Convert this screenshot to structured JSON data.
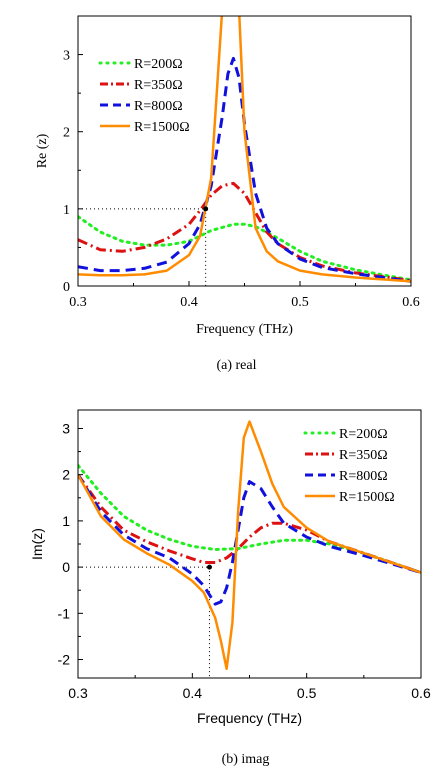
{
  "chart_data": [
    {
      "type": "line",
      "xlabel": "Frequency (THz)",
      "ylabel": "Re (z)",
      "caption": "(a) real",
      "xlim": [
        0.3,
        0.6
      ],
      "ylim": [
        0,
        3.5
      ],
      "xticks": [
        "0.3",
        "0.4",
        "0.5",
        "0.6"
      ],
      "yticks": [
        "0",
        "1",
        "2",
        "3"
      ],
      "legend_position": "top-left",
      "reference_lines": {
        "x": 0.415,
        "y": 1.0,
        "marker": [
          0.415,
          1.0
        ]
      },
      "series": [
        {
          "name": "R=200Ω",
          "color": "#22ee22",
          "style": "dotted",
          "x": [
            0.3,
            0.32,
            0.34,
            0.36,
            0.38,
            0.4,
            0.41,
            0.42,
            0.43,
            0.44,
            0.45,
            0.46,
            0.48,
            0.5,
            0.52,
            0.55,
            0.58,
            0.6
          ],
          "y": [
            0.9,
            0.7,
            0.58,
            0.53,
            0.53,
            0.58,
            0.65,
            0.72,
            0.76,
            0.8,
            0.8,
            0.77,
            0.62,
            0.45,
            0.32,
            0.21,
            0.13,
            0.08
          ]
        },
        {
          "name": "R=350Ω",
          "color": "#dd1111",
          "style": "dashdot",
          "x": [
            0.3,
            0.32,
            0.34,
            0.36,
            0.38,
            0.4,
            0.41,
            0.42,
            0.43,
            0.44,
            0.45,
            0.46,
            0.47,
            0.48,
            0.5,
            0.52,
            0.55,
            0.58,
            0.6
          ],
          "y": [
            0.6,
            0.47,
            0.45,
            0.5,
            0.61,
            0.8,
            0.98,
            1.18,
            1.3,
            1.33,
            1.2,
            0.95,
            0.7,
            0.55,
            0.37,
            0.26,
            0.17,
            0.11,
            0.07
          ]
        },
        {
          "name": "R=800Ω",
          "color": "#1111dd",
          "style": "dashed",
          "x": [
            0.3,
            0.32,
            0.34,
            0.36,
            0.38,
            0.4,
            0.41,
            0.42,
            0.43,
            0.435,
            0.44,
            0.445,
            0.45,
            0.46,
            0.47,
            0.48,
            0.5,
            0.52,
            0.55,
            0.58,
            0.6
          ],
          "y": [
            0.25,
            0.2,
            0.2,
            0.23,
            0.31,
            0.55,
            0.8,
            1.3,
            2.2,
            2.75,
            2.95,
            2.7,
            2.1,
            1.2,
            0.75,
            0.55,
            0.35,
            0.24,
            0.16,
            0.1,
            0.06
          ]
        },
        {
          "name": "R=1500Ω",
          "color": "#ff8c00",
          "style": "solid",
          "x": [
            0.3,
            0.32,
            0.34,
            0.36,
            0.38,
            0.4,
            0.41,
            0.42,
            0.43,
            0.435,
            0.44,
            0.445,
            0.45,
            0.46,
            0.47,
            0.48,
            0.5,
            0.52,
            0.55,
            0.58,
            0.6
          ],
          "y": [
            0.15,
            0.14,
            0.14,
            0.15,
            0.2,
            0.4,
            0.65,
            1.4,
            3.6,
            5.0,
            5.0,
            3.6,
            2.0,
            0.75,
            0.45,
            0.32,
            0.2,
            0.15,
            0.11,
            0.08,
            0.06
          ]
        }
      ]
    },
    {
      "type": "line",
      "xlabel": "Frequency (THz)",
      "ylabel": "Im(z)",
      "caption": "(b) imag",
      "xlim": [
        0.3,
        0.6
      ],
      "ylim": [
        -2.4,
        3.4
      ],
      "xticks": [
        "0.3",
        "0.4",
        "0.5",
        "0.6"
      ],
      "yticks": [
        "-2",
        "-1",
        "0",
        "1",
        "2",
        "3"
      ],
      "legend_position": "top-right",
      "reference_lines": {
        "x": 0.415,
        "y": 0.0,
        "marker": [
          0.415,
          0.0
        ]
      },
      "series": [
        {
          "name": "R=200Ω",
          "color": "#22ee22",
          "style": "dotted",
          "x": [
            0.3,
            0.32,
            0.34,
            0.36,
            0.38,
            0.4,
            0.42,
            0.44,
            0.46,
            0.48,
            0.5,
            0.52,
            0.55,
            0.58,
            0.6
          ],
          "y": [
            2.2,
            1.6,
            1.1,
            0.8,
            0.6,
            0.45,
            0.38,
            0.4,
            0.5,
            0.58,
            0.58,
            0.5,
            0.3,
            0.05,
            -0.12
          ]
        },
        {
          "name": "R=350Ω",
          "color": "#dd1111",
          "style": "dashdot",
          "x": [
            0.3,
            0.32,
            0.34,
            0.36,
            0.38,
            0.4,
            0.41,
            0.42,
            0.43,
            0.44,
            0.45,
            0.46,
            0.47,
            0.48,
            0.5,
            0.52,
            0.55,
            0.58,
            0.6
          ],
          "y": [
            2.0,
            1.3,
            0.8,
            0.55,
            0.35,
            0.18,
            0.1,
            0.1,
            0.2,
            0.4,
            0.65,
            0.85,
            0.95,
            0.95,
            0.8,
            0.55,
            0.3,
            0.05,
            -0.12
          ]
        },
        {
          "name": "R=800Ω",
          "color": "#1111dd",
          "style": "dashed",
          "x": [
            0.3,
            0.32,
            0.34,
            0.36,
            0.38,
            0.4,
            0.41,
            0.42,
            0.425,
            0.43,
            0.435,
            0.44,
            0.445,
            0.45,
            0.46,
            0.47,
            0.48,
            0.5,
            0.52,
            0.55,
            0.58,
            0.6
          ],
          "y": [
            2.0,
            1.2,
            0.7,
            0.4,
            0.2,
            -0.15,
            -0.4,
            -0.8,
            -0.75,
            -0.45,
            0.1,
            0.8,
            1.5,
            1.85,
            1.7,
            1.3,
            0.95,
            0.65,
            0.45,
            0.25,
            0.03,
            -0.12
          ]
        },
        {
          "name": "R=1500Ω",
          "color": "#ff8c00",
          "style": "solid",
          "x": [
            0.3,
            0.32,
            0.34,
            0.36,
            0.38,
            0.4,
            0.41,
            0.42,
            0.425,
            0.43,
            0.435,
            0.44,
            0.445,
            0.45,
            0.46,
            0.47,
            0.48,
            0.5,
            0.52,
            0.55,
            0.58,
            0.6
          ],
          "y": [
            2.0,
            1.1,
            0.6,
            0.3,
            0.05,
            -0.3,
            -0.55,
            -1.1,
            -1.6,
            -2.2,
            -1.2,
            1.2,
            2.8,
            3.15,
            2.5,
            1.8,
            1.3,
            0.85,
            0.55,
            0.3,
            0.05,
            -0.12
          ]
        }
      ]
    }
  ]
}
